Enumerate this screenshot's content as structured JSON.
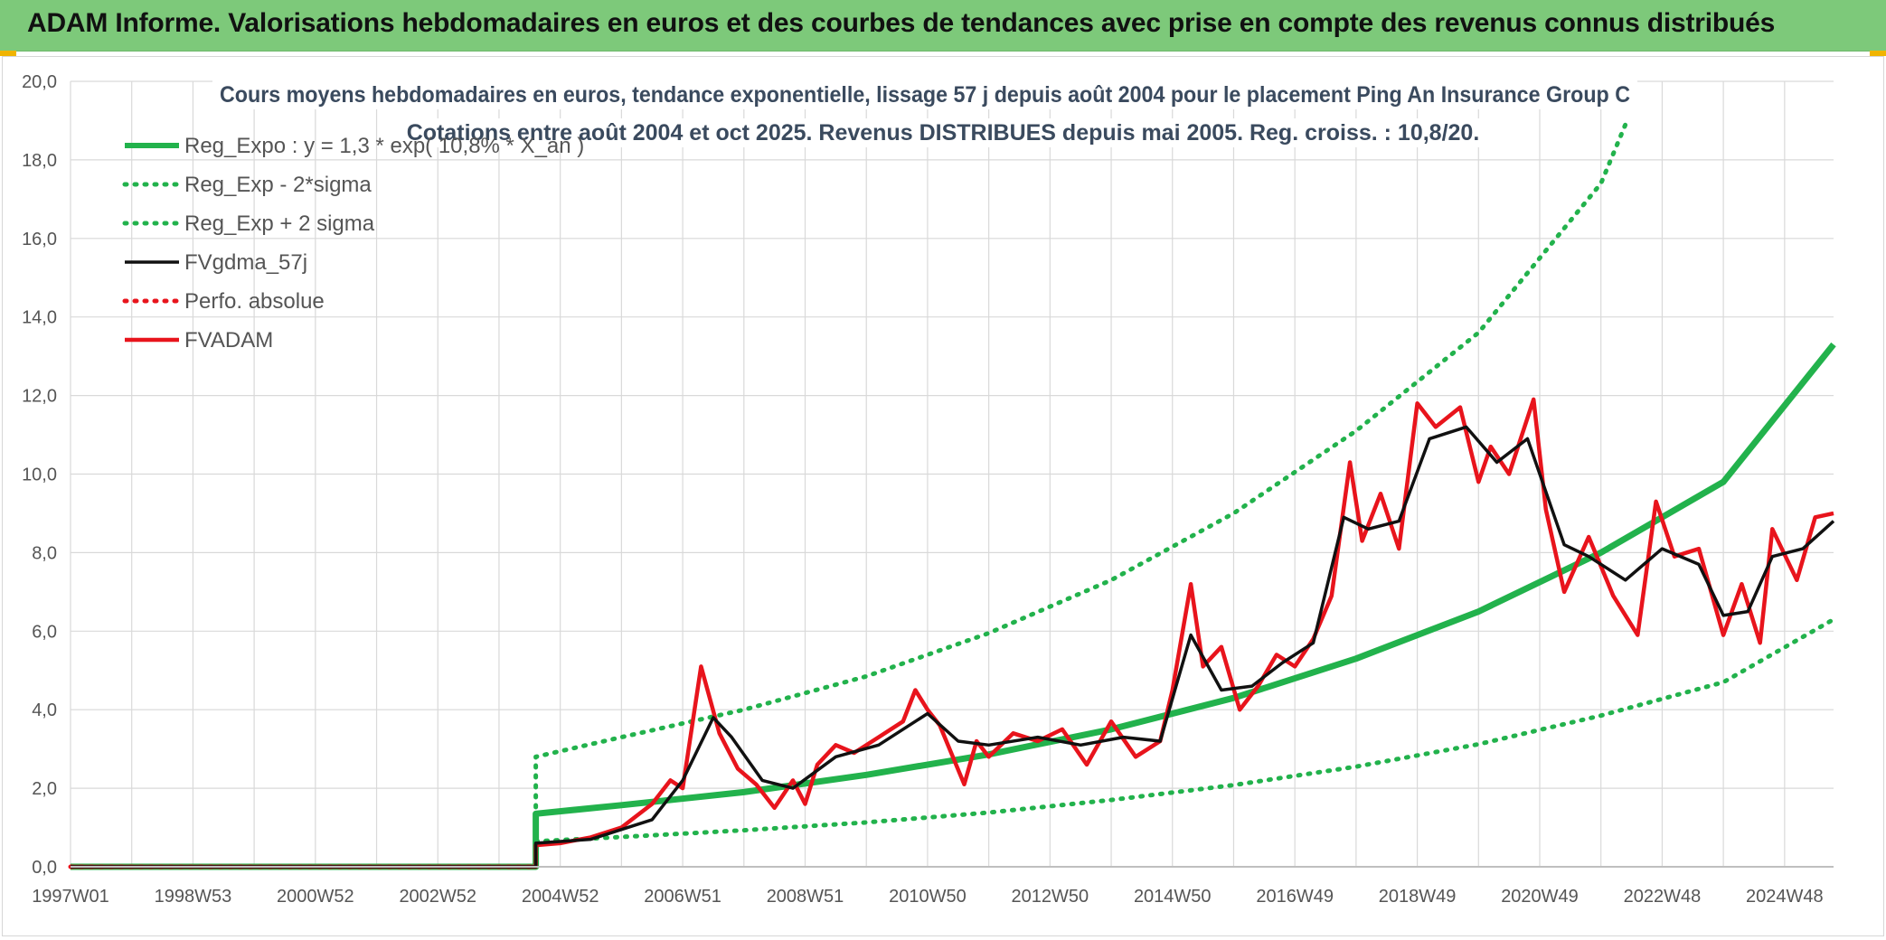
{
  "header": {
    "title": "ADAM Informe. Valorisations hebdomadaires en euros et des courbes de tendances avec prise en compte des revenus connus distribués"
  },
  "colors": {
    "banner_bg": "#7dc97a",
    "corner_accent": "#f0b400",
    "green": "#22b24c",
    "black": "#111111",
    "red": "#e8141c",
    "grid": "#d9d9d9"
  },
  "chart_data": {
    "type": "line",
    "title_line1": "Cours moyens hebdomadaires en euros, tendance exponentielle, lissage 57 j depuis août 2004 pour le placement Ping An Insurance Group C",
    "title_line2": "Cotations entre août 2004 et oct 2025. Revenus DISTRIBUES depuis mai 2005. Reg. croiss. : 10,8/20.",
    "xlabel": "",
    "ylabel": "",
    "xlim": [
      1997.0,
      2025.8
    ],
    "ylim": [
      0,
      20
    ],
    "y_ticks": [
      "0,0",
      "2,0",
      "4,0",
      "6,0",
      "8,0",
      "10,0",
      "12,0",
      "14,0",
      "16,0",
      "18,0",
      "20,0"
    ],
    "x_ticks": [
      {
        "label": "1997W01",
        "x": 1997.0
      },
      {
        "label": "1998W53",
        "x": 1999.0
      },
      {
        "label": "2000W52",
        "x": 2001.0
      },
      {
        "label": "2002W52",
        "x": 2003.0
      },
      {
        "label": "2004W52",
        "x": 2005.0
      },
      {
        "label": "2006W51",
        "x": 2007.0
      },
      {
        "label": "2008W51",
        "x": 2009.0
      },
      {
        "label": "2010W50",
        "x": 2011.0
      },
      {
        "label": "2012W50",
        "x": 2013.0
      },
      {
        "label": "2014W50",
        "x": 2015.0
      },
      {
        "label": "2016W49",
        "x": 2017.0
      },
      {
        "label": "2018W49",
        "x": 2019.0
      },
      {
        "label": "2020W49",
        "x": 2021.0
      },
      {
        "label": "2022W48",
        "x": 2023.0
      },
      {
        "label": "2024W48",
        "x": 2025.0
      }
    ],
    "grid": true,
    "legend_position": "top-left",
    "series": [
      {
        "name": "Reg_Expo : y = 1,3 * exp( 10,8% *  X_an )",
        "color": "#22b24c",
        "style": "solid",
        "x": [
          1997.0,
          2004.6,
          2004.6,
          2006,
          2008,
          2010,
          2012,
          2014,
          2016,
          2018,
          2020,
          2022,
          2024,
          2025.8
        ],
        "y": [
          0,
          0,
          1.35,
          1.57,
          1.9,
          2.34,
          2.86,
          3.5,
          4.3,
          5.3,
          6.5,
          8.0,
          9.8,
          13.3
        ]
      },
      {
        "name": "Reg_Exp - 2*sigma",
        "color": "#22b24c",
        "style": "dotted",
        "x": [
          2004.6,
          2006,
          2008,
          2010,
          2012,
          2014,
          2016,
          2018,
          2020,
          2022,
          2024,
          2025.8
        ],
        "y": [
          0.65,
          0.76,
          0.93,
          1.13,
          1.38,
          1.7,
          2.08,
          2.55,
          3.12,
          3.85,
          4.7,
          6.3
        ]
      },
      {
        "name": "Reg_Exp + 2 sigma",
        "color": "#22b24c",
        "style": "dotted",
        "x": [
          2004.6,
          2004.6,
          2006,
          2008,
          2010,
          2012,
          2014,
          2016,
          2018,
          2020,
          2022,
          2022.4
        ],
        "y": [
          0,
          2.8,
          3.3,
          4.0,
          4.85,
          5.95,
          7.3,
          9.0,
          11.1,
          13.6,
          17.4,
          18.9
        ]
      },
      {
        "name": "FVgdma_57j",
        "color": "#111111",
        "style": "solid",
        "x": [
          1997.0,
          2004.6,
          2004.6,
          2005.5,
          2006.5,
          2007.0,
          2007.5,
          2007.8,
          2008.3,
          2008.8,
          2009.5,
          2010.2,
          2011.0,
          2011.5,
          2012.0,
          2012.8,
          2013.5,
          2014.2,
          2014.8,
          2015.3,
          2015.8,
          2016.3,
          2016.8,
          2017.3,
          2017.8,
          2018.2,
          2018.7,
          2019.2,
          2019.8,
          2020.3,
          2020.8,
          2021.4,
          2021.8,
          2022.4,
          2023.0,
          2023.6,
          2024.0,
          2024.4,
          2024.8,
          2025.3,
          2025.8
        ],
        "y": [
          0,
          0,
          0.6,
          0.7,
          1.2,
          2.2,
          3.8,
          3.3,
          2.2,
          2.0,
          2.8,
          3.1,
          3.9,
          3.2,
          3.1,
          3.3,
          3.1,
          3.3,
          3.2,
          5.9,
          4.5,
          4.6,
          5.2,
          5.7,
          8.9,
          8.6,
          8.8,
          10.9,
          11.2,
          10.3,
          10.9,
          8.2,
          7.9,
          7.3,
          8.1,
          7.7,
          6.4,
          6.5,
          7.9,
          8.1,
          8.8
        ]
      },
      {
        "name": "Perfo. absolue",
        "color": "#e8141c",
        "style": "dotted",
        "x": [
          1997.0,
          2004.6
        ],
        "y": [
          0,
          0
        ]
      },
      {
        "name": "FVADAM",
        "color": "#e8141c",
        "style": "solid",
        "x": [
          1997.0,
          2004.6,
          2004.6,
          2005.0,
          2005.5,
          2006.0,
          2006.5,
          2006.8,
          2007.0,
          2007.3,
          2007.6,
          2007.9,
          2008.2,
          2008.5,
          2008.8,
          2009.0,
          2009.2,
          2009.5,
          2009.8,
          2010.2,
          2010.6,
          2010.8,
          2011.0,
          2011.2,
          2011.6,
          2011.8,
          2012.0,
          2012.4,
          2012.8,
          2013.2,
          2013.6,
          2014.0,
          2014.4,
          2014.8,
          2015.0,
          2015.3,
          2015.5,
          2015.8,
          2016.1,
          2016.4,
          2016.7,
          2017.0,
          2017.3,
          2017.6,
          2017.9,
          2018.1,
          2018.4,
          2018.7,
          2019.0,
          2019.3,
          2019.7,
          2020.0,
          2020.2,
          2020.5,
          2020.9,
          2021.1,
          2021.4,
          2021.8,
          2022.2,
          2022.6,
          2022.9,
          2023.2,
          2023.6,
          2024.0,
          2024.3,
          2024.6,
          2024.8,
          2025.2,
          2025.5,
          2025.8
        ],
        "y": [
          0,
          0,
          0.55,
          0.6,
          0.75,
          1.0,
          1.6,
          2.2,
          2.0,
          5.1,
          3.4,
          2.5,
          2.1,
          1.5,
          2.2,
          1.6,
          2.6,
          3.1,
          2.9,
          3.3,
          3.7,
          4.5,
          4.0,
          3.6,
          2.1,
          3.2,
          2.8,
          3.4,
          3.2,
          3.5,
          2.6,
          3.7,
          2.8,
          3.2,
          4.5,
          7.2,
          5.1,
          5.6,
          4.0,
          4.6,
          5.4,
          5.1,
          5.8,
          6.9,
          10.3,
          8.3,
          9.5,
          8.1,
          11.8,
          11.2,
          11.7,
          9.8,
          10.7,
          10.0,
          11.9,
          9.1,
          7.0,
          8.4,
          6.9,
          5.9,
          9.3,
          7.9,
          8.1,
          5.9,
          7.2,
          5.7,
          8.6,
          7.3,
          8.9,
          9.0
        ]
      }
    ]
  }
}
